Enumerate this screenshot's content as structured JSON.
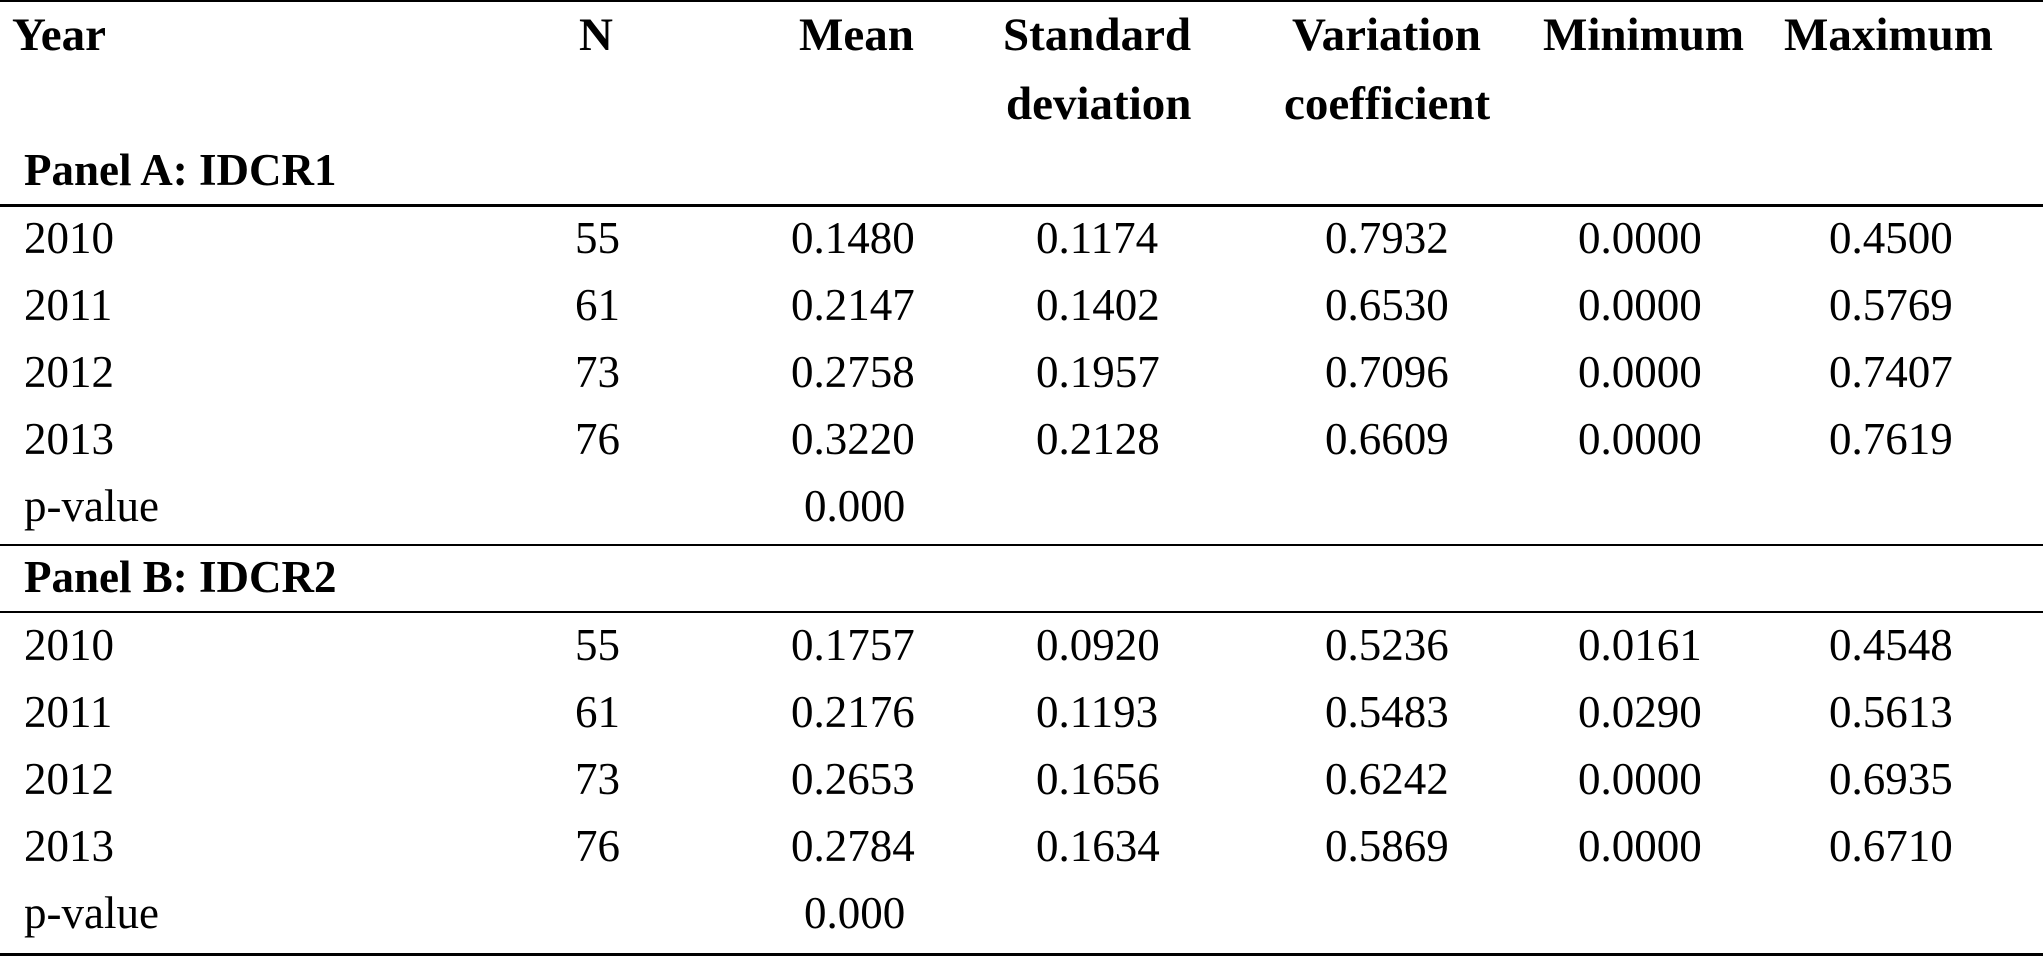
{
  "header": {
    "year": "Year",
    "n": "N",
    "mean": "Mean",
    "sd_line1": "Standard",
    "sd_line2": "deviation",
    "cv_line1": "Variation",
    "cv_line2": "coefficient",
    "minimum": "Minimum",
    "maximum": "Maximum"
  },
  "panel_a": {
    "title": "Panel A: IDCR1",
    "rows": [
      {
        "year": "2010",
        "n": "55",
        "mean": "0.1480",
        "sd": "0.1174",
        "cv": "0.7932",
        "min": "0.0000",
        "max": "0.4500"
      },
      {
        "year": "2011",
        "n": "61",
        "mean": "0.2147",
        "sd": "0.1402",
        "cv": "0.6530",
        "min": "0.0000",
        "max": "0.5769"
      },
      {
        "year": "2012",
        "n": "73",
        "mean": "0.2758",
        "sd": "0.1957",
        "cv": "0.7096",
        "min": "0.0000",
        "max": "0.7407"
      },
      {
        "year": "2013",
        "n": "76",
        "mean": "0.3220",
        "sd": "0.2128",
        "cv": "0.6609",
        "min": "0.0000",
        "max": "0.7619"
      }
    ],
    "pvalue_label": "p-value",
    "pvalue": "0.000"
  },
  "panel_b": {
    "title": "Panel B: IDCR2",
    "rows": [
      {
        "year": "2010",
        "n": "55",
        "mean": "0.1757",
        "sd": "0.0920",
        "cv": "0.5236",
        "min": "0.0161",
        "max": "0.4548"
      },
      {
        "year": "2011",
        "n": "61",
        "mean": "0.2176",
        "sd": "0.1193",
        "cv": "0.5483",
        "min": "0.0290",
        "max": "0.5613"
      },
      {
        "year": "2012",
        "n": "73",
        "mean": "0.2653",
        "sd": "0.1656",
        "cv": "0.6242",
        "min": "0.0000",
        "max": "0.6935"
      },
      {
        "year": "2013",
        "n": "76",
        "mean": "0.2784",
        "sd": "0.1634",
        "cv": "0.5869",
        "min": "0.0000",
        "max": "0.6710"
      }
    ],
    "pvalue_label": "p-value",
    "pvalue": "0.000"
  }
}
